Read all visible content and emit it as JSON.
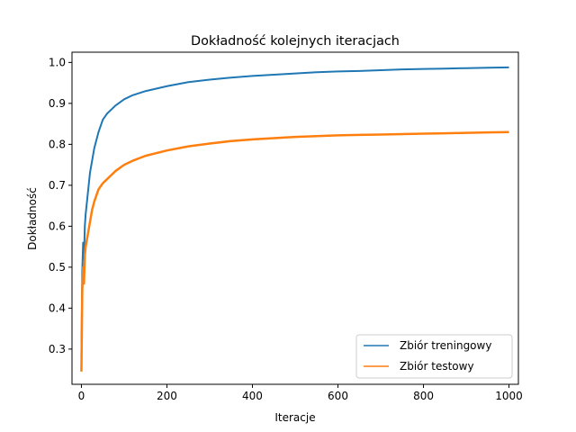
{
  "chart_data": {
    "type": "line",
    "title": "Dokładność kolejnych iteracjach",
    "xlabel": "Iteracje",
    "ylabel": "Dokładność",
    "xlim": [
      -22,
      1022
    ],
    "ylim": [
      0.214,
      1.025
    ],
    "xticks": [
      0,
      200,
      400,
      600,
      800,
      1000
    ],
    "yticks": [
      0.3,
      0.4,
      0.5,
      0.6,
      0.7,
      0.8,
      0.9,
      1.0
    ],
    "xtick_labels": [
      "0",
      "200",
      "400",
      "600",
      "800",
      "1000"
    ],
    "ytick_labels": [
      "0.3",
      "0.4",
      "0.5",
      "0.6",
      "0.7",
      "0.8",
      "0.9",
      "1.0"
    ],
    "grid": false,
    "legend_position": "lower-right",
    "series": [
      {
        "name": "Zbiór treningowy",
        "color": "#1f77b4",
        "x": [
          0,
          2,
          4,
          6,
          8,
          10,
          15,
          20,
          25,
          30,
          40,
          50,
          60,
          70,
          80,
          100,
          120,
          150,
          200,
          250,
          300,
          350,
          400,
          450,
          500,
          550,
          600,
          650,
          700,
          750,
          800,
          850,
          900,
          950,
          1000
        ],
        "y": [
          0.28,
          0.49,
          0.56,
          0.52,
          0.6,
          0.63,
          0.68,
          0.73,
          0.76,
          0.79,
          0.83,
          0.86,
          0.875,
          0.885,
          0.895,
          0.91,
          0.92,
          0.93,
          0.942,
          0.952,
          0.958,
          0.963,
          0.967,
          0.97,
          0.973,
          0.976,
          0.978,
          0.979,
          0.981,
          0.983,
          0.984,
          0.985,
          0.986,
          0.987,
          0.988
        ]
      },
      {
        "name": "Zbiór testowy",
        "color": "#ff7f0e",
        "x": [
          0,
          2,
          4,
          6,
          8,
          10,
          15,
          20,
          25,
          30,
          40,
          50,
          60,
          70,
          80,
          100,
          120,
          150,
          200,
          250,
          300,
          350,
          400,
          450,
          500,
          550,
          600,
          650,
          700,
          750,
          800,
          850,
          900,
          950,
          1000
        ],
        "y": [
          0.245,
          0.44,
          0.5,
          0.46,
          0.53,
          0.55,
          0.58,
          0.61,
          0.64,
          0.66,
          0.69,
          0.705,
          0.715,
          0.725,
          0.735,
          0.75,
          0.76,
          0.772,
          0.785,
          0.795,
          0.802,
          0.808,
          0.812,
          0.815,
          0.818,
          0.82,
          0.822,
          0.823,
          0.824,
          0.825,
          0.826,
          0.827,
          0.828,
          0.829,
          0.83
        ]
      }
    ]
  }
}
